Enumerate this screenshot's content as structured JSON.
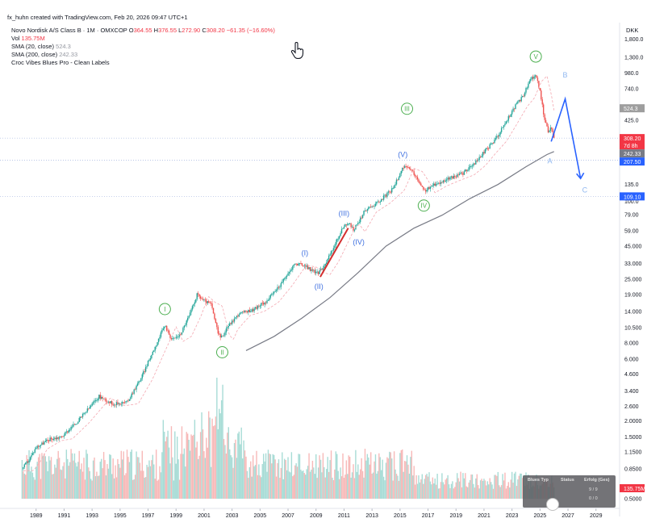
{
  "header": {
    "attribution": "fx_huhn created with TradingView.com, Feb 20, 2026 09:47 UTC+1"
  },
  "legend": {
    "symbol_line": "Novo Nordisk A/S Class B · 1M · OMXCOP",
    "ohlc": {
      "o_label": "O",
      "o": "364.55",
      "h_label": "H",
      "h": "376.55",
      "l_label": "L",
      "l": "272.90",
      "c_label": "C",
      "c": "308.20",
      "chg": "−61.35 (−16.60%)"
    },
    "vol_label": "Vol",
    "vol_value": "135.75M",
    "sma20_label": "SMA (20, close)",
    "sma20_value": "524.3",
    "sma200_label": "SMA (200, close)",
    "sma200_value": "242.33",
    "indicator": "Croc Vibes Blues Pro - Clean Labels"
  },
  "colors": {
    "up": "#26a69a",
    "down": "#ef5350",
    "sma20": "#f3a7b0",
    "sma200": "#787b86",
    "wave_green": "#4caf50",
    "wave_blue": "#3d6fe0",
    "proj_blue": "#2962ff",
    "label_lightblue": "#90b8f0",
    "red_line": "#d32f2f"
  },
  "icons": {
    "cursor": "hand-pointer-icon",
    "logo": "kaleido-icon"
  },
  "table": {
    "headers": [
      "Blues Typ",
      "Status",
      "Erfolg (Ges)"
    ],
    "rows": [
      [
        "",
        "",
        "9 / 9"
      ],
      [
        "",
        "",
        "0 / 0"
      ]
    ]
  },
  "chart_data": {
    "type": "line",
    "scale": "log",
    "currency": "DKK",
    "title": "Novo Nordisk A/S Class B · 1M · OMXCOP",
    "y_ticks": [
      "1,800.0",
      "1,300.0",
      "980.0",
      "740.0",
      "425.0",
      "135.0",
      "100.0",
      "79.00",
      "59.00",
      "45.000",
      "33.000",
      "25.000",
      "19.000",
      "14.000",
      "10.500",
      "8.000",
      "6.000",
      "4.600",
      "3.400",
      "2.600",
      "2.0000",
      "1.5000",
      "1.1500",
      "0.8500",
      "0.5000"
    ],
    "x_ticks": [
      "1989",
      "1991",
      "1993",
      "1995",
      "1997",
      "1999",
      "2001",
      "2003",
      "2005",
      "2007",
      "2009",
      "2011",
      "2013",
      "2015",
      "2017",
      "2019",
      "2021",
      "2023",
      "2025",
      "2027",
      "2029"
    ],
    "price_series": {
      "name": "Close (approx.)",
      "x": [
        1988.0,
        1988.5,
        1989.0,
        1990.0,
        1990.8,
        1992.0,
        1993.5,
        1994.5,
        1995.5,
        1996.5,
        1997.5,
        1998.2,
        1998.7,
        1999.3,
        2000.0,
        2000.5,
        2001.0,
        2001.5,
        2002.0,
        2002.3,
        2002.6,
        2003.5,
        2004.5,
        2005.5,
        2006.5,
        2007.5,
        2008.2,
        2008.7,
        2009.2,
        2009.8,
        2010.5,
        2011.0,
        2011.3,
        2011.7,
        2012.5,
        2013.5,
        2014.5,
        2015.2,
        2015.8,
        2016.2,
        2016.7,
        2017.5,
        2018.5,
        2019.5,
        2020.3,
        2021.0,
        2021.8,
        2022.5,
        2023.3,
        2023.8,
        2024.3,
        2024.7,
        2025.0,
        2025.3,
        2025.6,
        2025.8,
        2026.0
      ],
      "values": [
        0.85,
        1.0,
        1.25,
        1.45,
        1.5,
        2.0,
        3.1,
        2.7,
        2.8,
        4.3,
        7.5,
        11.0,
        8.5,
        9.3,
        13.5,
        19.0,
        17.0,
        16.0,
        9.5,
        8.8,
        10.5,
        13.5,
        14.5,
        17.0,
        23.0,
        33.0,
        32.0,
        29.0,
        28.0,
        35.0,
        50.0,
        65.0,
        68.0,
        60.0,
        85.0,
        100.0,
        125.0,
        185.0,
        175.0,
        150.0,
        120.0,
        135.0,
        150.0,
        165.0,
        195.0,
        240.0,
        300.0,
        400.0,
        560.0,
        650.0,
        870.0,
        960.0,
        700.0,
        450.0,
        340.0,
        380.0,
        308.2
      ]
    },
    "sma200_series": {
      "name": "SMA (200, close)",
      "x": [
        2004.0,
        2006.0,
        2008.0,
        2010.0,
        2012.0,
        2014.0,
        2016.0,
        2018.0,
        2020.0,
        2022.0,
        2024.0,
        2025.5,
        2026.0
      ],
      "values": [
        7.0,
        9.0,
        12.5,
        18.0,
        28.0,
        45.0,
        62.0,
        78.0,
        105.0,
        135.0,
        185.0,
        230.0,
        242.33
      ]
    },
    "waves": [
      {
        "label": "I",
        "x": 1998.2,
        "price": 11.0,
        "style": "green-circle"
      },
      {
        "label": "II",
        "x": 2002.3,
        "price": 8.8,
        "style": "green-circle"
      },
      {
        "label": "III",
        "x": 2015.5,
        "price": 520.0,
        "style": "green-circle"
      },
      {
        "label": "IV",
        "x": 2016.7,
        "price": 120.0,
        "style": "green-circle"
      },
      {
        "label": "V",
        "x": 2024.7,
        "price": 960.0,
        "style": "green-circle"
      },
      {
        "label": "(I)",
        "x": 2008.2,
        "price": 32.0,
        "style": "blue"
      },
      {
        "label": "(II)",
        "x": 2009.2,
        "price": 28.0,
        "style": "blue"
      },
      {
        "label": "(III)",
        "x": 2011.0,
        "price": 65.0,
        "style": "blue"
      },
      {
        "label": "(IV)",
        "x": 2011.7,
        "price": 60.0,
        "style": "blue"
      },
      {
        "label": "(V)",
        "x": 2015.2,
        "price": 185.0,
        "style": "blue"
      },
      {
        "label": "A",
        "x": 2025.7,
        "price": 240.0,
        "style": "lightblue"
      },
      {
        "label": "B",
        "x": 2026.8,
        "price": 700.0,
        "style": "lightblue"
      },
      {
        "label": "C",
        "x": 2028.2,
        "price": 135.0,
        "style": "lightblue"
      }
    ],
    "projection": {
      "x": [
        2025.8,
        2026.8,
        2027.9
      ],
      "values": [
        290.0,
        620.0,
        150.0
      ]
    },
    "red_segment": {
      "x": [
        2009.3,
        2011.3
      ],
      "values": [
        26.0,
        62.0
      ]
    },
    "price_tags": [
      {
        "text": "524.3",
        "value": 524.3,
        "kind": "sma20"
      },
      {
        "text": "308.20",
        "value": 308.2,
        "kind": "last"
      },
      {
        "text": "7d 8h",
        "value": 290.0,
        "kind": "countdown"
      },
      {
        "text": "242.33",
        "value": 242.33,
        "kind": "sma200"
      },
      {
        "text": "207.50",
        "value": 207.5,
        "kind": "level"
      },
      {
        "text": "109.10",
        "value": 109.1,
        "kind": "level"
      },
      {
        "text": "135.75M",
        "value": null,
        "kind": "volume"
      }
    ],
    "levels": [
      308.2,
      207.5,
      109.1
    ],
    "volume_note": "monthly volume bars along the bottom"
  }
}
